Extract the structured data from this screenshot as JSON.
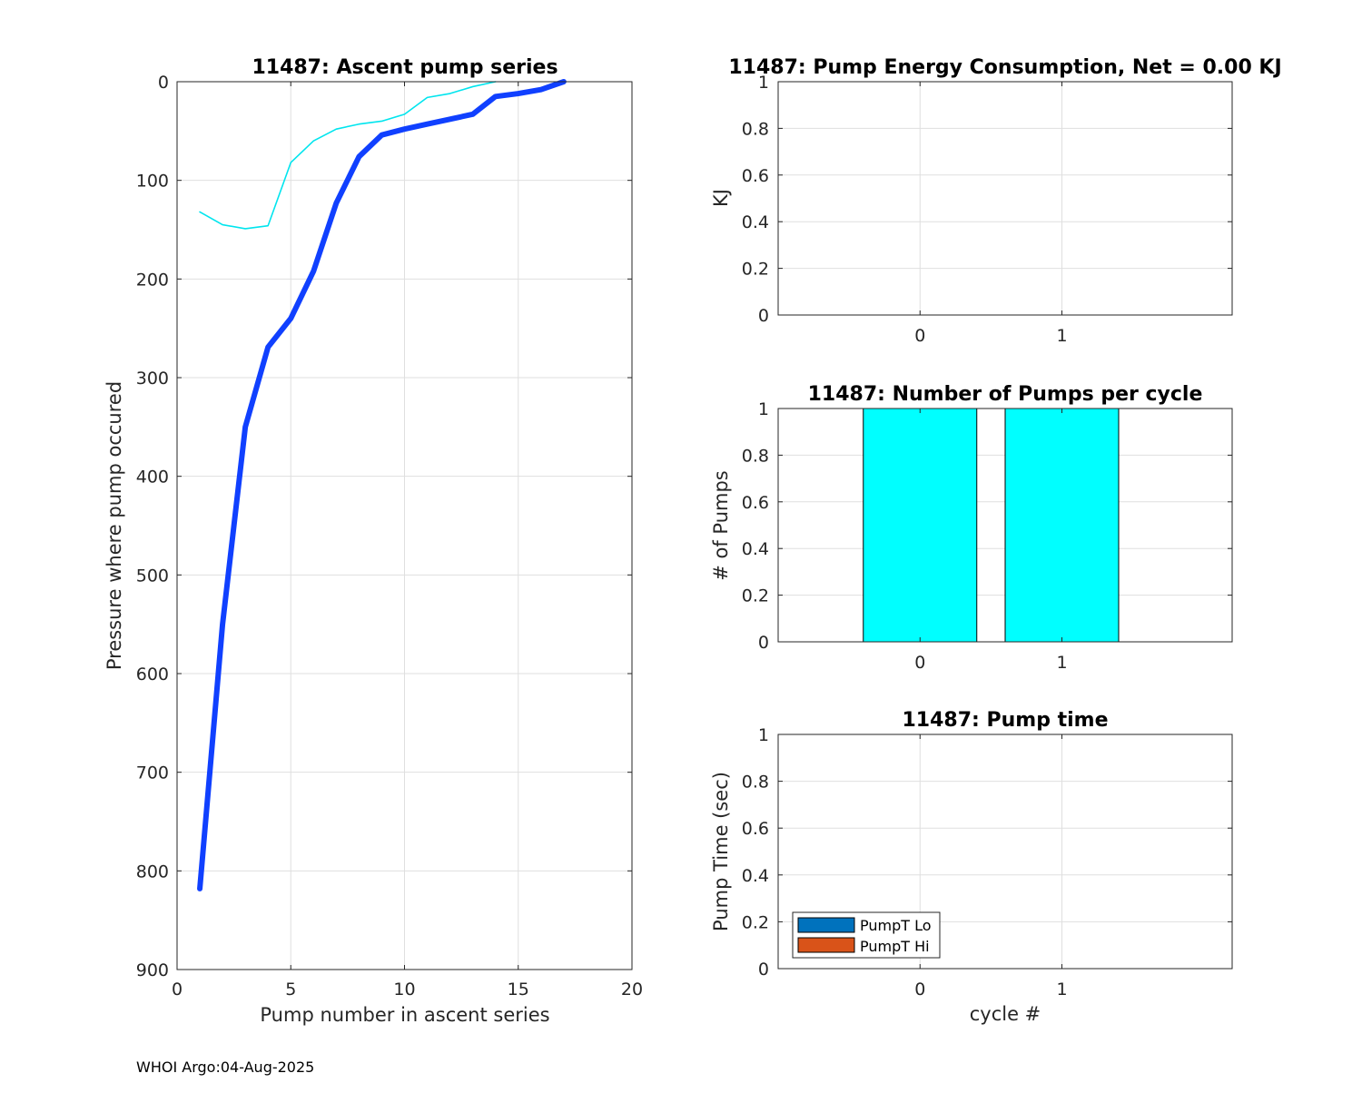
{
  "footer": "WHOI Argo:04-Aug-2025",
  "chart_data": [
    {
      "id": "ascent",
      "type": "line",
      "title": "11487: Ascent pump series",
      "xlabel": "Pump number in ascent series",
      "ylabel": "Pressure where pump occured",
      "xlim": [
        0,
        20
      ],
      "ylim": [
        0,
        900
      ],
      "y_reversed": true,
      "grid": true,
      "xticks": [
        0,
        5,
        10,
        15,
        20
      ],
      "yticks": [
        0,
        100,
        200,
        300,
        400,
        500,
        600,
        700,
        800,
        900
      ],
      "series": [
        {
          "color": "#00e5ee",
          "line_width": "thin",
          "x": [
            1,
            2,
            3,
            4,
            5,
            6,
            7,
            8,
            9,
            10,
            11,
            12,
            13,
            14
          ],
          "y": [
            132,
            145,
            149,
            146,
            82,
            60,
            48,
            43,
            40,
            33,
            16,
            12,
            5,
            0
          ]
        },
        {
          "color": "#1040ff",
          "line_width": "thick",
          "x": [
            1,
            2,
            3,
            4,
            5,
            6,
            7,
            8,
            9,
            10,
            11,
            12,
            13,
            14,
            15,
            16,
            17
          ],
          "y": [
            818,
            550,
            350,
            269,
            240,
            192,
            123,
            76,
            54,
            48,
            43,
            38,
            33,
            15,
            12,
            8,
            0
          ]
        }
      ]
    },
    {
      "id": "energy",
      "type": "bar",
      "title": "11487: Pump Energy Consumption,  Net =   0.00 KJ",
      "xlabel": "",
      "ylabel": "KJ",
      "categories": [
        0,
        1
      ],
      "values": [
        0,
        0
      ],
      "xlim": [
        -1,
        2.2
      ],
      "ylim": [
        0,
        1
      ],
      "yticks": [
        0,
        0.2,
        0.4,
        0.6,
        0.8,
        1
      ],
      "grid": true
    },
    {
      "id": "pumps",
      "type": "bar",
      "title": "11487: Number of Pumps per cycle",
      "xlabel": "",
      "ylabel": "# of Pumps",
      "categories": [
        0,
        1
      ],
      "values": [
        1,
        1
      ],
      "bar_color": "#00ffff",
      "xlim": [
        -1,
        2.2
      ],
      "ylim": [
        0,
        1
      ],
      "yticks": [
        0,
        0.2,
        0.4,
        0.6,
        0.8,
        1
      ],
      "grid": true
    },
    {
      "id": "pumptime",
      "type": "bar",
      "title": "11487: Pump time",
      "xlabel": "cycle #",
      "ylabel": "Pump Time (sec)",
      "categories": [
        0,
        1
      ],
      "series": [
        {
          "name": "PumpT Lo",
          "color": "#0072bd",
          "values": [
            0,
            0
          ]
        },
        {
          "name": "PumpT Hi",
          "color": "#d95319",
          "values": [
            0,
            0
          ]
        }
      ],
      "xlim": [
        -1,
        2.2
      ],
      "ylim": [
        0,
        1
      ],
      "yticks": [
        0,
        0.2,
        0.4,
        0.6,
        0.8,
        1
      ],
      "grid": true,
      "legend": "bottom-left"
    }
  ]
}
